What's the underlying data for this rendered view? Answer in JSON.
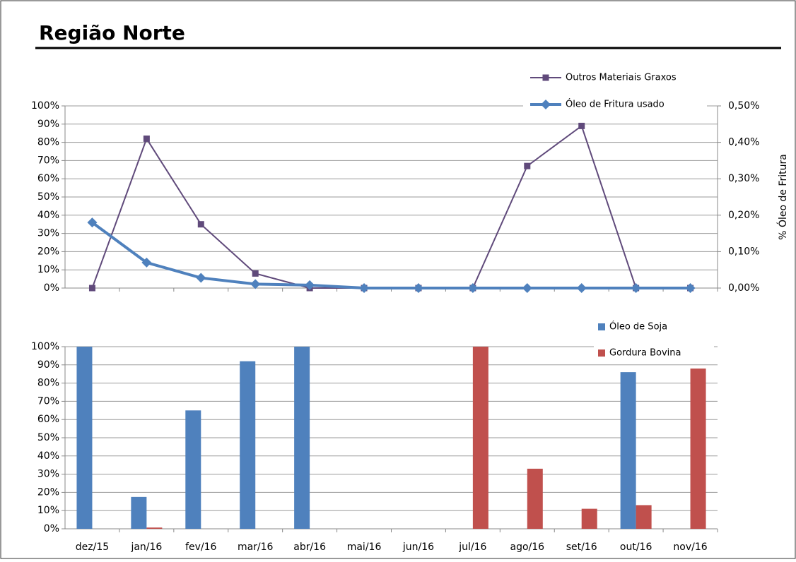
{
  "page_title": "Região Norte",
  "chart_data": [
    {
      "type": "line",
      "categories": [
        null,
        null,
        null,
        null,
        null,
        null,
        null,
        null,
        null,
        null,
        null,
        null
      ],
      "y2label": "% Óleo de Fritura",
      "ylim": [
        0,
        100
      ],
      "yticks": [
        {
          "value": 0,
          "label": "0%"
        },
        {
          "value": 10,
          "label": "10%"
        },
        {
          "value": 20,
          "label": "20%"
        },
        {
          "value": 30,
          "label": "30%"
        },
        {
          "value": 40,
          "label": "40%"
        },
        {
          "value": 50,
          "label": "50%"
        },
        {
          "value": 60,
          "label": "60%"
        },
        {
          "value": 70,
          "label": "70%"
        },
        {
          "value": 80,
          "label": "80%"
        },
        {
          "value": 90,
          "label": "90%"
        },
        {
          "value": 100,
          "label": "100%"
        }
      ],
      "y2lim": [
        0,
        0.5
      ],
      "y2ticks": [
        {
          "value": 0,
          "label": "0,00%"
        },
        {
          "value": 0.1,
          "label": "0,10%"
        },
        {
          "value": 0.2,
          "label": "0,20%"
        },
        {
          "value": 0.3,
          "label": "0,30%"
        },
        {
          "value": 0.4,
          "label": "0,40%"
        },
        {
          "value": 0.5,
          "label": "0,50%"
        }
      ],
      "grid": true,
      "series": [
        {
          "name": "Outros Materiais Graxos",
          "color": "#604a7b",
          "marker": "square",
          "axis": "y",
          "values": [
            0,
            82,
            35,
            8,
            0,
            0,
            0,
            0,
            67,
            89,
            0,
            0
          ]
        },
        {
          "name": "Óleo de Fritura usado",
          "color": "#4f81bd",
          "marker": "diamond",
          "axis": "y2",
          "values": [
            0.18,
            0.07,
            0.028,
            0.011,
            0.008,
            0,
            0,
            0,
            0,
            0,
            0,
            0
          ]
        }
      ]
    },
    {
      "type": "bar",
      "categories": [
        "dez/15",
        "jan/16",
        "fev/16",
        "mar/16",
        "abr/16",
        "mai/16",
        "jun/16",
        "jul/16",
        "ago/16",
        "set/16",
        "out/16",
        "nov/16"
      ],
      "ylim": [
        0,
        100
      ],
      "yticks": [
        {
          "value": 0,
          "label": "0%"
        },
        {
          "value": 10,
          "label": "10%"
        },
        {
          "value": 20,
          "label": "20%"
        },
        {
          "value": 30,
          "label": "30%"
        },
        {
          "value": 40,
          "label": "40%"
        },
        {
          "value": 50,
          "label": "50%"
        },
        {
          "value": 60,
          "label": "60%"
        },
        {
          "value": 70,
          "label": "70%"
        },
        {
          "value": 80,
          "label": "80%"
        },
        {
          "value": 90,
          "label": "90%"
        },
        {
          "value": 100,
          "label": "100%"
        }
      ],
      "grid": true,
      "series": [
        {
          "name": "Óleo de Soja",
          "color": "#4f81bd",
          "values": [
            100,
            17.5,
            65,
            92,
            100,
            0,
            0,
            0,
            0,
            0,
            86,
            0
          ]
        },
        {
          "name": "Gordura Bovina",
          "color": "#c0504d",
          "values": [
            0,
            0.7,
            0,
            0,
            0,
            0,
            0,
            100,
            33,
            11,
            13,
            88
          ]
        }
      ]
    }
  ]
}
